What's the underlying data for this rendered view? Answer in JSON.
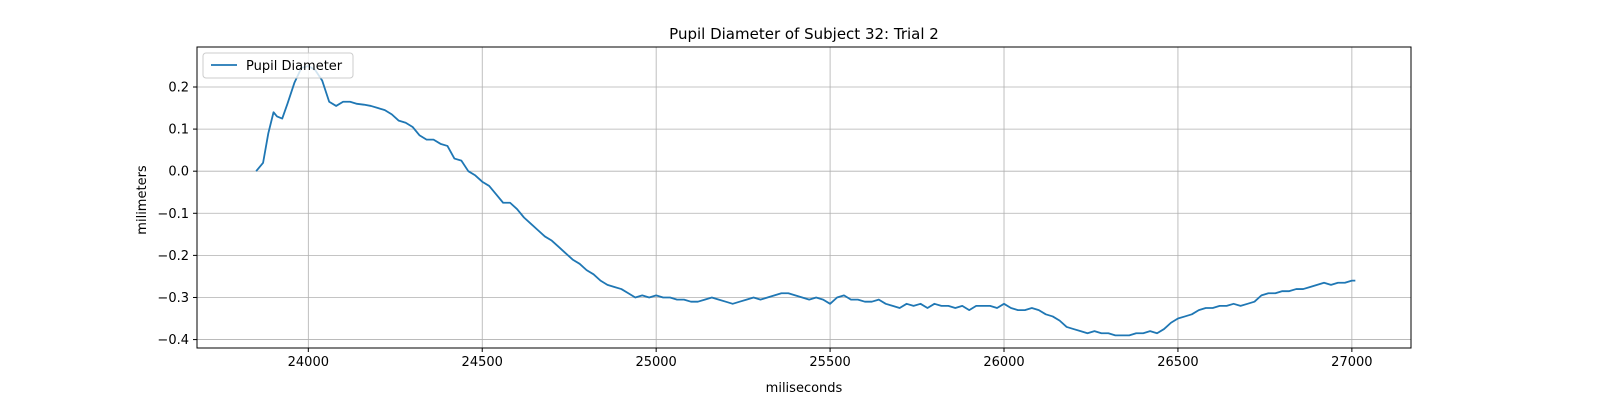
{
  "chart_data": {
    "type": "line",
    "title": "Pupil Diameter of Subject 32: Trial 2",
    "xlabel": "miliseconds",
    "ylabel": "milimeters",
    "xlim": [
      23680,
      27170
    ],
    "ylim": [
      -0.42,
      0.295
    ],
    "xticks": [
      24000,
      24500,
      25000,
      25500,
      26000,
      26500,
      27000
    ],
    "yticks": [
      -0.4,
      -0.3,
      -0.2,
      -0.1,
      0.0,
      0.1,
      0.2
    ],
    "xtick_labels": [
      "24000",
      "24500",
      "25000",
      "25500",
      "26000",
      "26500",
      "27000"
    ],
    "ytick_labels": [
      "−0.4",
      "−0.3",
      "−0.2",
      "−0.1",
      "0.0",
      "0.1",
      "0.2"
    ],
    "grid": true,
    "legend": {
      "position": "upper-left",
      "entries": [
        "Pupil Diameter"
      ]
    },
    "series": [
      {
        "name": "Pupil Diameter",
        "color": "#1f77b4",
        "x": [
          23850,
          23870,
          23885,
          23900,
          23910,
          23925,
          23940,
          23960,
          23980,
          24000,
          24020,
          24040,
          24060,
          24080,
          24100,
          24120,
          24140,
          24160,
          24180,
          24200,
          24220,
          24240,
          24260,
          24280,
          24300,
          24320,
          24340,
          24360,
          24380,
          24400,
          24420,
          24440,
          24460,
          24480,
          24500,
          24520,
          24540,
          24560,
          24580,
          24600,
          24620,
          24640,
          24660,
          24680,
          24700,
          24720,
          24740,
          24760,
          24780,
          24800,
          24820,
          24840,
          24860,
          24880,
          24900,
          24920,
          24940,
          24960,
          24980,
          25000,
          25020,
          25040,
          25060,
          25080,
          25100,
          25120,
          25140,
          25160,
          25180,
          25200,
          25220,
          25240,
          25260,
          25280,
          25300,
          25320,
          25340,
          25360,
          25380,
          25400,
          25420,
          25440,
          25460,
          25480,
          25500,
          25520,
          25540,
          25560,
          25580,
          25600,
          25620,
          25640,
          25660,
          25680,
          25700,
          25720,
          25740,
          25760,
          25780,
          25800,
          25820,
          25840,
          25860,
          25880,
          25900,
          25920,
          25940,
          25960,
          25980,
          26000,
          26020,
          26040,
          26060,
          26080,
          26100,
          26120,
          26140,
          26160,
          26180,
          26200,
          26220,
          26240,
          26260,
          26280,
          26300,
          26320,
          26340,
          26360,
          26380,
          26400,
          26420,
          26440,
          26460,
          26480,
          26500,
          26520,
          26540,
          26560,
          26580,
          26600,
          26620,
          26640,
          26660,
          26680,
          26700,
          26720,
          26740,
          26760,
          26780,
          26800,
          26820,
          26840,
          26860,
          26880,
          26900,
          26920,
          26940,
          26960,
          26980,
          27000,
          27010
        ],
        "y": [
          0.0,
          0.02,
          0.09,
          0.14,
          0.13,
          0.125,
          0.16,
          0.21,
          0.245,
          0.25,
          0.24,
          0.215,
          0.165,
          0.155,
          0.165,
          0.165,
          0.16,
          0.158,
          0.155,
          0.15,
          0.145,
          0.135,
          0.12,
          0.115,
          0.105,
          0.085,
          0.075,
          0.075,
          0.065,
          0.06,
          0.03,
          0.025,
          0.0,
          -0.01,
          -0.025,
          -0.035,
          -0.055,
          -0.075,
          -0.075,
          -0.09,
          -0.11,
          -0.125,
          -0.14,
          -0.155,
          -0.165,
          -0.18,
          -0.195,
          -0.21,
          -0.22,
          -0.235,
          -0.245,
          -0.26,
          -0.27,
          -0.275,
          -0.28,
          -0.29,
          -0.3,
          -0.295,
          -0.3,
          -0.295,
          -0.3,
          -0.3,
          -0.305,
          -0.305,
          -0.31,
          -0.31,
          -0.305,
          -0.3,
          -0.305,
          -0.31,
          -0.315,
          -0.31,
          -0.305,
          -0.3,
          -0.305,
          -0.3,
          -0.295,
          -0.29,
          -0.29,
          -0.295,
          -0.3,
          -0.305,
          -0.3,
          -0.305,
          -0.315,
          -0.3,
          -0.295,
          -0.305,
          -0.305,
          -0.31,
          -0.31,
          -0.305,
          -0.315,
          -0.32,
          -0.325,
          -0.315,
          -0.32,
          -0.315,
          -0.325,
          -0.315,
          -0.32,
          -0.32,
          -0.325,
          -0.32,
          -0.33,
          -0.32,
          -0.32,
          -0.32,
          -0.325,
          -0.315,
          -0.325,
          -0.33,
          -0.33,
          -0.325,
          -0.33,
          -0.34,
          -0.345,
          -0.355,
          -0.37,
          -0.375,
          -0.38,
          -0.385,
          -0.38,
          -0.385,
          -0.385,
          -0.39,
          -0.39,
          -0.39,
          -0.385,
          -0.385,
          -0.38,
          -0.385,
          -0.375,
          -0.36,
          -0.35,
          -0.345,
          -0.34,
          -0.33,
          -0.325,
          -0.325,
          -0.32,
          -0.32,
          -0.315,
          -0.32,
          -0.315,
          -0.31,
          -0.295,
          -0.29,
          -0.29,
          -0.285,
          -0.285,
          -0.28,
          -0.28,
          -0.275,
          -0.27,
          -0.265,
          -0.27,
          -0.265,
          -0.265,
          -0.26,
          -0.26
        ]
      }
    ]
  }
}
